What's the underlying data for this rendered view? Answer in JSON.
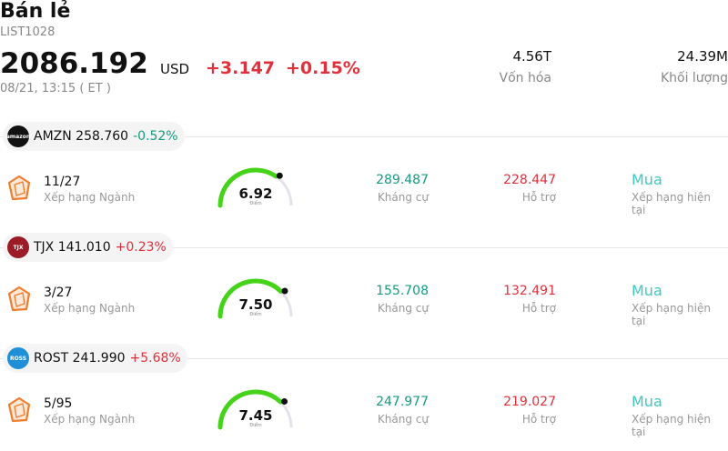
{
  "header": {
    "title": "Bán lẻ",
    "code": "LIST1028",
    "price": "2086.192",
    "currency": "USD",
    "change": "+3.147",
    "change_pct": "+0.15%",
    "time": "08/21, 13:15  ( ET )",
    "market_cap": {
      "value": "4.56T",
      "label": "Vốn hóa"
    },
    "volume": {
      "value": "24.39M",
      "label": "Khối lượng"
    }
  },
  "stocks": [
    {
      "ticker_line": "AMZN 258.760",
      "change": "-0.52%",
      "direction": "down",
      "logo_text": "amazon",
      "logo_color": "#111111",
      "rank": "11/27",
      "rank_label": "Xếp hạng Ngành",
      "score": "6.92",
      "score_value": 6.92,
      "score_label": "Điểm",
      "resistance": "289.487",
      "resistance_label": "Kháng cự",
      "support": "228.447",
      "support_label": "Hỗ trợ",
      "rating": "Mua",
      "rating_label": "Xếp hạng hiện tại"
    },
    {
      "ticker_line": "TJX 141.010",
      "change": "+0.23%",
      "direction": "up",
      "logo_text": "TJX",
      "logo_color": "#9b1c26",
      "rank": "3/27",
      "rank_label": "Xếp hạng Ngành",
      "score": "7.50",
      "score_value": 7.5,
      "score_label": "Điểm",
      "resistance": "155.708",
      "resistance_label": "Kháng cự",
      "support": "132.491",
      "support_label": "Hỗ trợ",
      "rating": "Mua",
      "rating_label": "Xếp hạng hiện tại"
    },
    {
      "ticker_line": "ROST 241.990",
      "change": "+5.68%",
      "direction": "up",
      "logo_text": "ROSS",
      "logo_color": "#1f8fd6",
      "rank": "5/95",
      "rank_label": "Xếp hạng Ngành",
      "score": "7.45",
      "score_value": 7.45,
      "score_label": "Điểm",
      "resistance": "247.977",
      "resistance_label": "Kháng cự",
      "support": "219.027",
      "support_label": "Hỗ trợ",
      "rating": "Mua",
      "rating_label": "Xếp hạng hiện tại"
    }
  ],
  "colors": {
    "positive": "#e0313c",
    "negative": "#149b80",
    "gauge_fill": "#44d318",
    "gauge_track": "#e2e2ea",
    "rating": "#3cc9c0",
    "rank_icon": "#ef7d2e"
  },
  "icons": {
    "rank": "shield-rank-icon",
    "gauge_marker": "gauge-marker-icon"
  }
}
